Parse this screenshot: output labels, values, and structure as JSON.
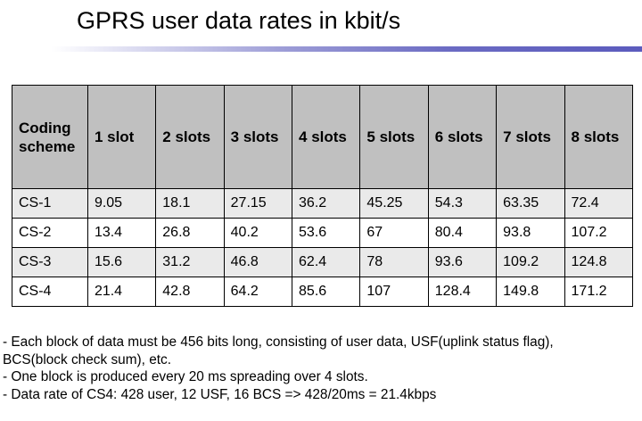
{
  "title": "GPRS user data rates in kbit/s",
  "table": {
    "headers": [
      "Coding\nscheme",
      "1 slot",
      "2 slots",
      "3 slots",
      "4 slots",
      "5 slots",
      "6 slots",
      "7 slots",
      "8 slots"
    ],
    "rows": [
      [
        "CS-1",
        "9.05",
        "18.1",
        "27.15",
        "36.2",
        "45.25",
        "54.3",
        "63.35",
        "72.4"
      ],
      [
        "CS-2",
        "13.4",
        "26.8",
        "40.2",
        "53.6",
        "67",
        "80.4",
        "93.8",
        "107.2"
      ],
      [
        "CS-3",
        "15.6",
        "31.2",
        "46.8",
        "62.4",
        "78",
        "93.6",
        "109.2",
        "124.8"
      ],
      [
        "CS-4",
        "21.4",
        "42.8",
        "64.2",
        "85.6",
        "107",
        "128.4",
        "149.8",
        "171.2"
      ]
    ]
  },
  "notes": [
    "- Each block of data must be 456 bits long, consisting of user data, USF(uplink status flag),",
    "BCS(block check sum), etc.",
    "- One block is produced every 20 ms spreading over 4 slots.",
    "- Data rate of CS4: 428 user, 12 USF, 16 BCS => 428/20ms = 21.4kbps"
  ],
  "colors": {
    "header_bg": "#c0c0c0",
    "row_shade": "#eaeaea",
    "rule_accent": "#5b5bbd"
  }
}
